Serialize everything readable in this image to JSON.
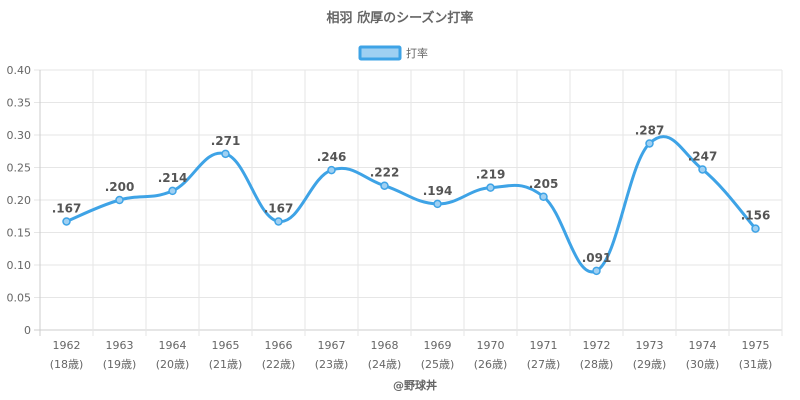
{
  "chart_data": {
    "type": "line",
    "title": "相羽 欣厚のシーズン打率",
    "categories": [
      "1962",
      "1963",
      "1964",
      "1965",
      "1966",
      "1967",
      "1968",
      "1969",
      "1970",
      "1971",
      "1972",
      "1973",
      "1974",
      "1975"
    ],
    "category_sublabels": [
      "(18歳)",
      "(19歳)",
      "(20歳)",
      "(21歳)",
      "(22歳)",
      "(23歳)",
      "(24歳)",
      "(25歳)",
      "(26歳)",
      "(27歳)",
      "(28歳)",
      "(29歳)",
      "(30歳)",
      "(31歳)"
    ],
    "series": [
      {
        "name": "打率",
        "values": [
          0.167,
          0.2,
          0.214,
          0.271,
          0.167,
          0.246,
          0.222,
          0.194,
          0.219,
          0.205,
          0.091,
          0.287,
          0.247,
          0.156
        ],
        "data_labels": [
          ".167",
          ".200",
          ".214",
          ".271",
          ".167",
          ".246",
          ".222",
          ".194",
          ".219",
          ".205",
          ".091",
          ".287",
          ".247",
          ".156"
        ],
        "color": "#3ea3e6",
        "fill": "#9fd0f2"
      }
    ],
    "ylim": [
      0,
      0.4
    ],
    "yticks": [
      "0",
      "0.05",
      "0.10",
      "0.15",
      "0.20",
      "0.25",
      "0.30",
      "0.35",
      "0.40"
    ],
    "ytick_values": [
      0,
      0.05,
      0.1,
      0.15,
      0.2,
      0.25,
      0.3,
      0.35,
      0.4
    ],
    "grid": true,
    "legend_position": "top-center",
    "footer": "@野球丼"
  }
}
